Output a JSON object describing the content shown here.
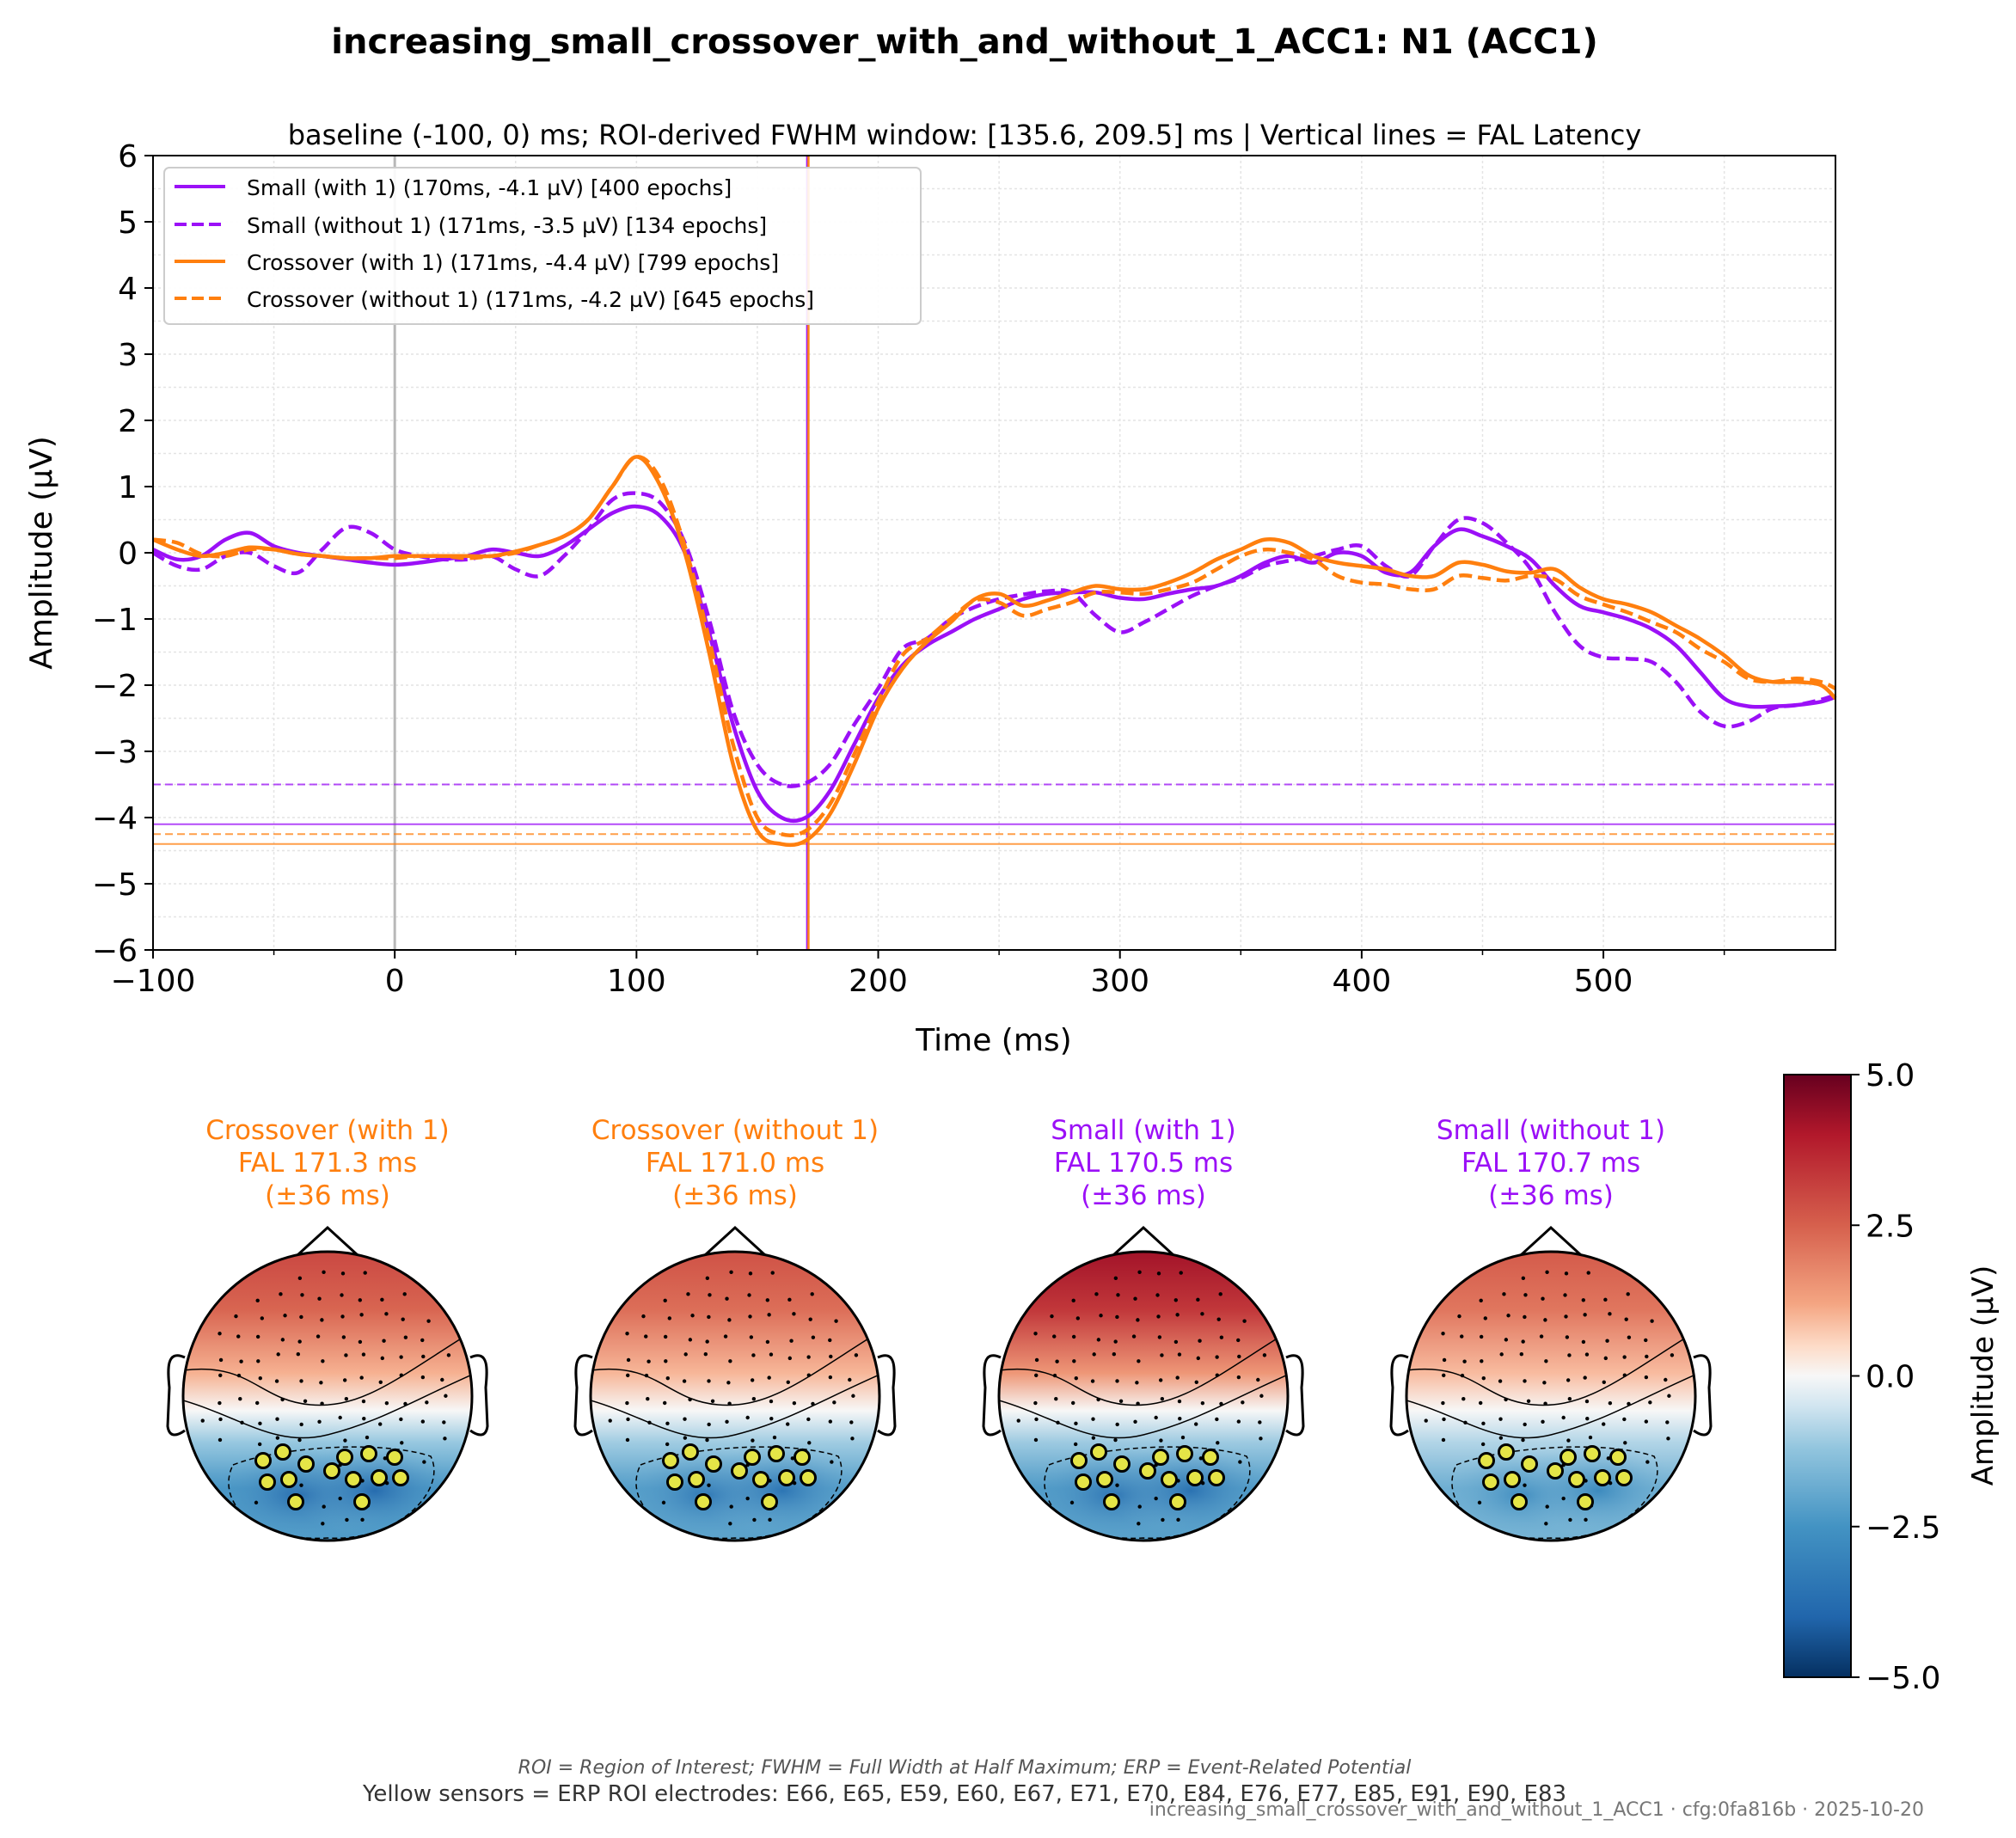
{
  "figure": {
    "title": "increasing_small_crossover_with_and_without_1_ACC1: N1 (ACC1)",
    "footnote_abbrev": "ROI = Region of Interest; FWHM = Full Width at Half Maximum; ERP = Event-Related Potential",
    "footnote_sensors": "Yellow sensors = ERP ROI electrodes: E66, E65, E59, E60, E67, E71, E70, E84, E76, E77, E85, E91, E90, E83",
    "config_stamp": "increasing_small_crossover_with_and_without_1_ACC1 · cfg:0fa816b · 2025-10-20"
  },
  "colors": {
    "small": "#9b10f7",
    "crossover": "#ff7f0e",
    "zero_line": "#b8b8b8",
    "roi_sensor": "#e5e547"
  },
  "chart_data": [
    {
      "type": "line",
      "subtitle": "baseline (-100, 0) ms; ROI-derived FWHM window: [135.6, 209.5] ms | Vertical lines = FAL Latency",
      "xlabel": "Time (ms)",
      "ylabel": "Amplitude (µV)",
      "xlim": [
        -100,
        596
      ],
      "ylim": [
        -6,
        6
      ],
      "xticks": [
        -100,
        0,
        100,
        200,
        300,
        400,
        500
      ],
      "xtick_labels": [
        "−100",
        "0",
        "100",
        "200",
        "300",
        "400",
        "500"
      ],
      "yticks": [
        -6,
        -5,
        -4,
        -3,
        -2,
        -1,
        0,
        1,
        2,
        3,
        4,
        5,
        6
      ],
      "ytick_labels": [
        "−6",
        "−5",
        "−4",
        "−3",
        "−2",
        "−1",
        "0",
        "1",
        "2",
        "3",
        "4",
        "5",
        "6"
      ],
      "grid": true,
      "legend_position": "top-left",
      "x": [
        -100,
        -90,
        -80,
        -70,
        -60,
        -50,
        -40,
        -30,
        -20,
        -10,
        0,
        10,
        20,
        30,
        40,
        50,
        60,
        70,
        80,
        90,
        100,
        110,
        120,
        130,
        140,
        150,
        160,
        170,
        180,
        190,
        200,
        210,
        220,
        230,
        240,
        250,
        260,
        270,
        280,
        290,
        300,
        310,
        320,
        330,
        340,
        350,
        360,
        370,
        380,
        390,
        400,
        410,
        420,
        430,
        440,
        450,
        460,
        470,
        480,
        490,
        500,
        510,
        520,
        530,
        540,
        550,
        560,
        570,
        580,
        590,
        596
      ],
      "series": [
        {
          "name": "Small (with 1) (170ms, -4.1 µV) [400 epochs]",
          "color": "#9b10f7",
          "dash": "solid",
          "peak_latency": 170.5,
          "peak_amplitude": -4.1,
          "values": [
            0.05,
            -0.1,
            -0.05,
            0.2,
            0.3,
            0.1,
            0.0,
            -0.05,
            -0.1,
            -0.15,
            -0.18,
            -0.15,
            -0.1,
            -0.05,
            0.05,
            0.0,
            -0.05,
            0.1,
            0.35,
            0.6,
            0.7,
            0.55,
            0.0,
            -1.2,
            -2.6,
            -3.6,
            -4.0,
            -4.0,
            -3.6,
            -2.9,
            -2.2,
            -1.7,
            -1.4,
            -1.2,
            -1.0,
            -0.85,
            -0.7,
            -0.62,
            -0.6,
            -0.6,
            -0.68,
            -0.7,
            -0.62,
            -0.55,
            -0.5,
            -0.35,
            -0.15,
            -0.05,
            -0.15,
            0.0,
            -0.05,
            -0.3,
            -0.3,
            0.1,
            0.35,
            0.25,
            0.1,
            -0.1,
            -0.5,
            -0.8,
            -0.9,
            -1.0,
            -1.15,
            -1.4,
            -1.8,
            -2.2,
            -2.32,
            -2.32,
            -2.3,
            -2.25,
            -2.18
          ]
        },
        {
          "name": "Small (without 1) (171ms, -3.5 µV) [134 epochs]",
          "color": "#9b10f7",
          "dash": "dashed",
          "peak_latency": 170.7,
          "peak_amplitude": -3.5,
          "values": [
            0.0,
            -0.2,
            -0.25,
            -0.05,
            0.0,
            -0.2,
            -0.3,
            0.05,
            0.38,
            0.3,
            0.05,
            -0.05,
            -0.1,
            -0.1,
            -0.05,
            -0.25,
            -0.35,
            -0.05,
            0.35,
            0.8,
            0.9,
            0.75,
            0.15,
            -1.0,
            -2.4,
            -3.2,
            -3.5,
            -3.48,
            -3.2,
            -2.6,
            -2.05,
            -1.45,
            -1.3,
            -1.0,
            -0.82,
            -0.7,
            -0.63,
            -0.58,
            -0.6,
            -0.95,
            -1.2,
            -1.05,
            -0.85,
            -0.65,
            -0.5,
            -0.38,
            -0.2,
            -0.12,
            -0.05,
            0.05,
            0.1,
            -0.2,
            -0.35,
            0.1,
            0.5,
            0.45,
            0.15,
            -0.25,
            -0.9,
            -1.4,
            -1.58,
            -1.6,
            -1.65,
            -1.95,
            -2.4,
            -2.62,
            -2.55,
            -2.35,
            -2.3,
            -2.22,
            -2.15
          ]
        },
        {
          "name": "Crossover (with 1) (171ms, -4.4 µV) [799 epochs]",
          "color": "#ff7f0e",
          "dash": "solid",
          "peak_latency": 171.3,
          "peak_amplitude": -4.4,
          "values": [
            0.2,
            0.05,
            -0.05,
            0.0,
            0.08,
            0.05,
            -0.02,
            -0.05,
            -0.08,
            -0.08,
            -0.05,
            -0.05,
            -0.05,
            -0.05,
            -0.05,
            0.02,
            0.12,
            0.25,
            0.5,
            1.0,
            1.45,
            1.0,
            0.0,
            -1.5,
            -3.2,
            -4.2,
            -4.4,
            -4.35,
            -3.95,
            -3.2,
            -2.35,
            -1.75,
            -1.35,
            -1.05,
            -0.7,
            -0.62,
            -0.8,
            -0.72,
            -0.6,
            -0.5,
            -0.55,
            -0.55,
            -0.45,
            -0.3,
            -0.1,
            0.05,
            0.2,
            0.15,
            -0.05,
            -0.15,
            -0.2,
            -0.25,
            -0.35,
            -0.35,
            -0.15,
            -0.18,
            -0.28,
            -0.3,
            -0.25,
            -0.52,
            -0.7,
            -0.78,
            -0.9,
            -1.1,
            -1.3,
            -1.55,
            -1.85,
            -1.95,
            -1.95,
            -2.0,
            -2.2
          ]
        },
        {
          "name": "Crossover (without 1) (171ms, -4.2 µV) [645 epochs]",
          "color": "#ff7f0e",
          "dash": "dashed",
          "peak_latency": 171.0,
          "peak_amplitude": -4.2,
          "values": [
            0.2,
            0.15,
            -0.02,
            -0.05,
            0.05,
            0.05,
            -0.02,
            -0.05,
            -0.08,
            -0.08,
            -0.08,
            -0.05,
            -0.05,
            -0.08,
            -0.05,
            0.0,
            0.12,
            0.25,
            0.5,
            1.0,
            1.45,
            1.1,
            0.1,
            -1.3,
            -2.9,
            -4.0,
            -4.25,
            -4.2,
            -3.8,
            -3.05,
            -2.25,
            -1.55,
            -1.3,
            -1.0,
            -0.72,
            -0.75,
            -0.95,
            -0.85,
            -0.75,
            -0.6,
            -0.6,
            -0.62,
            -0.55,
            -0.45,
            -0.25,
            -0.05,
            0.05,
            0.0,
            -0.1,
            -0.35,
            -0.45,
            -0.48,
            -0.55,
            -0.55,
            -0.35,
            -0.38,
            -0.42,
            -0.35,
            -0.4,
            -0.65,
            -0.78,
            -0.9,
            -1.05,
            -1.2,
            -1.45,
            -1.65,
            -1.9,
            -1.95,
            -1.9,
            -1.95,
            -2.05
          ]
        }
      ],
      "fal_vlines": [
        {
          "x": 170.5,
          "color": "#9b10f7"
        },
        {
          "x": 170.7,
          "color": "#9b10f7"
        },
        {
          "x": 171.3,
          "color": "#ff7f0e"
        },
        {
          "x": 171.0,
          "color": "#ff7f0e"
        }
      ],
      "peak_hlines": [
        {
          "y": -4.1,
          "color": "#9b10f7",
          "dash": "solid"
        },
        {
          "y": -3.5,
          "color": "#9b10f7",
          "dash": "dashed"
        },
        {
          "y": -4.4,
          "color": "#ff7f0e",
          "dash": "solid"
        },
        {
          "y": -4.25,
          "color": "#ff7f0e",
          "dash": "dashed"
        }
      ],
      "zero_vline": 0
    },
    {
      "type": "heatmap",
      "subtype": "topomap",
      "colorbar": {
        "label": "Amplitude (µV)",
        "range": [
          -5,
          5
        ],
        "ticks": [
          5.0,
          2.5,
          0.0,
          -2.5,
          -5.0
        ],
        "tick_labels": [
          "5.0",
          "2.5",
          "0.0",
          "−2.5",
          "−5.0"
        ],
        "colormap": "RdBu_r"
      },
      "maps": [
        {
          "title_line1": "Crossover (with 1)",
          "title_line2": "FAL 171.3 ms",
          "title_line3": "(±36 ms)",
          "color": "#ff7f0e",
          "frontal_uv": 3.0,
          "posterior_uv": -3.8
        },
        {
          "title_line1": "Crossover (without 1)",
          "title_line2": "FAL 171.0 ms",
          "title_line3": "(±36 ms)",
          "color": "#ff7f0e",
          "frontal_uv": 2.8,
          "posterior_uv": -3.5
        },
        {
          "title_line1": "Small (with 1)",
          "title_line2": "FAL 170.5 ms",
          "title_line3": "(±36 ms)",
          "color": "#9b10f7",
          "frontal_uv": 4.2,
          "posterior_uv": -3.6
        },
        {
          "title_line1": "Small (without 1)",
          "title_line2": "FAL 170.7 ms",
          "title_line3": "(±36 ms)",
          "color": "#9b10f7",
          "frontal_uv": 2.6,
          "posterior_uv": -2.8
        }
      ]
    }
  ]
}
